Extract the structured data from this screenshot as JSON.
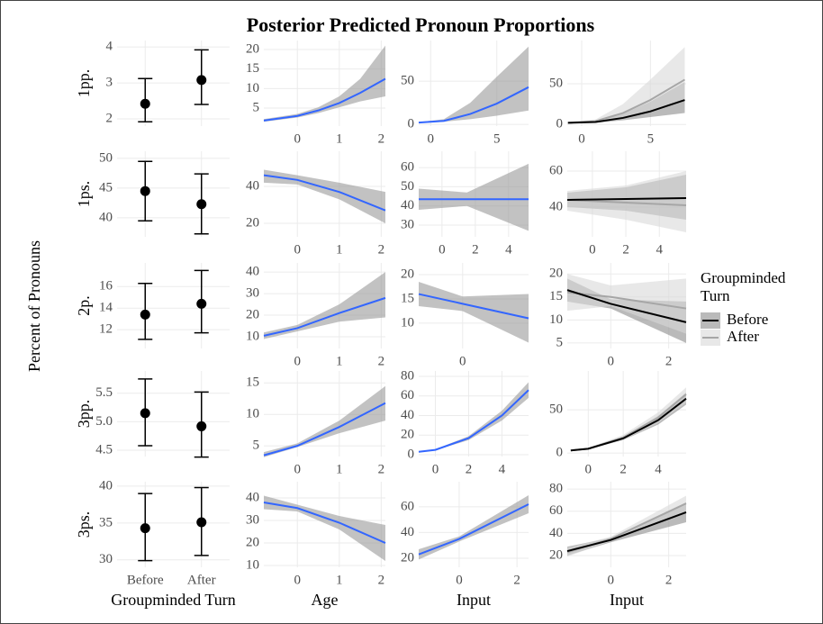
{
  "title": "Posterior Predicted Pronoun Proportions",
  "y_label": "Percent of Pronouns",
  "legend_title": [
    "Groupminded",
    "Turn"
  ],
  "chart_data": [
    {
      "type": "pointrange",
      "row_label": "1pp.",
      "categories": [
        null,
        null
      ],
      "values": [
        2.42,
        3.08
      ],
      "lower": [
        1.92,
        2.4
      ],
      "upper": [
        3.12,
        3.92
      ],
      "color": "#000000",
      "ylim": [
        1.8,
        4.18
      ],
      "yticks": [
        2,
        3,
        4
      ]
    },
    {
      "type": "line",
      "x": [
        -0.8,
        0,
        0.5,
        1,
        1.5,
        2.1
      ],
      "values": [
        1.8,
        3,
        4.4,
        6.3,
        8.9,
        12.5
      ],
      "lower": [
        1.5,
        2.6,
        3.7,
        5.2,
        6.7,
        8
      ],
      "upper": [
        2.2,
        3.5,
        5.2,
        8,
        12.5,
        21
      ],
      "color": "#3366ff",
      "ribbon_color": "#999999",
      "xlim": [
        -0.8,
        2.1
      ],
      "xticks": [
        0,
        1,
        2
      ],
      "ylim": [
        0.4,
        22.3
      ],
      "yticks": [
        5,
        10,
        15,
        20
      ]
    },
    {
      "type": "line",
      "x": [
        -0.9,
        1,
        3,
        5,
        7.4
      ],
      "values": [
        2,
        4,
        12,
        24,
        43
      ],
      "lower": [
        1.5,
        3,
        6,
        10,
        16
      ],
      "upper": [
        2.5,
        6,
        25,
        55,
        90
      ],
      "color": "#3366ff",
      "ribbon_color": "#999999",
      "xlim": [
        -0.9,
        7.4
      ],
      "xticks": [
        0,
        5
      ],
      "ylim": [
        -2,
        97
      ],
      "yticks": [
        0,
        50
      ]
    },
    {
      "type": "line",
      "x": [
        -1,
        1,
        3,
        5,
        7.5
      ],
      "series": [
        {
          "name": "Before",
          "color": "#000000",
          "ribbon_color": "#8c8c8c",
          "values": [
            2,
            3,
            8,
            16,
            30
          ],
          "lower": [
            1.5,
            2,
            5,
            9,
            14
          ],
          "upper": [
            2.5,
            4,
            13,
            28,
            52
          ]
        },
        {
          "name": "After",
          "color": "#a6a6a6",
          "ribbon_color": "#d9d9d9",
          "values": [
            2,
            4,
            14,
            30,
            55
          ],
          "lower": [
            1.5,
            3,
            8,
            17,
            30
          ],
          "upper": [
            3,
            6,
            25,
            55,
            95
          ]
        }
      ],
      "xlim": [
        -1.05,
        7.6
      ],
      "xticks": [
        0,
        5
      ],
      "ylim": [
        -2,
        103
      ],
      "yticks": [
        0,
        50
      ]
    },
    {
      "type": "pointrange",
      "row_label": "1ps.",
      "categories": [
        null,
        null
      ],
      "values": [
        44.5,
        42.3
      ],
      "lower": [
        39.5,
        37.3
      ],
      "upper": [
        49.5,
        47.4
      ],
      "color": "#000000",
      "ylim": [
        36.8,
        51.2
      ],
      "yticks": [
        40,
        45,
        50
      ]
    },
    {
      "type": "line",
      "x": [
        -0.8,
        0,
        1,
        2.1
      ],
      "values": [
        46,
        43.5,
        37,
        27
      ],
      "lower": [
        42,
        41,
        33,
        20
      ],
      "upper": [
        49,
        46,
        42,
        37
      ],
      "color": "#3366ff",
      "ribbon_color": "#999999",
      "xlim": [
        -0.8,
        2.1
      ],
      "xticks": [
        0,
        1,
        2
      ],
      "ylim": [
        12.7,
        59
      ],
      "yticks": [
        20,
        40
      ]
    },
    {
      "type": "line",
      "x": [
        -1.4,
        1.5,
        5.2
      ],
      "values": [
        43.5,
        43.5,
        43.5
      ],
      "lower": [
        38,
        40,
        27
      ],
      "upper": [
        49,
        47,
        62
      ],
      "color": "#3366ff",
      "ribbon_color": "#999999",
      "xlim": [
        -1.4,
        5.2
      ],
      "xticks": [
        0,
        2,
        4
      ],
      "ylim": [
        23.9,
        68.5
      ],
      "yticks": [
        30,
        40,
        50,
        60
      ]
    },
    {
      "type": "line",
      "x": [
        -1.5,
        2,
        5.6
      ],
      "series": [
        {
          "color": "#000000",
          "ribbon_color": "#8c8c8c",
          "values": [
            44,
            44.5,
            45
          ],
          "lower": [
            40,
            38,
            33
          ],
          "upper": [
            48,
            51,
            58
          ]
        },
        {
          "color": "#a6a6a6",
          "ribbon_color": "#d9d9d9",
          "values": [
            44,
            42.5,
            41
          ],
          "lower": [
            38,
            33,
            26
          ],
          "upper": [
            49,
            52,
            60
          ]
        }
      ],
      "xlim": [
        -1.5,
        5.6
      ],
      "xticks": [
        0,
        2,
        4
      ],
      "ylim": [
        23.5,
        71
      ],
      "yticks": [
        40,
        60
      ]
    },
    {
      "type": "pointrange",
      "row_label": "2p.",
      "categories": [
        null,
        null
      ],
      "values": [
        13.4,
        14.4
      ],
      "lower": [
        11.1,
        11.7
      ],
      "upper": [
        16.3,
        17.5
      ],
      "color": "#000000",
      "ylim": [
        10.25,
        18.2
      ],
      "yticks": [
        12,
        14,
        16
      ]
    },
    {
      "type": "line",
      "x": [
        -0.8,
        0,
        1,
        2.1
      ],
      "values": [
        10.5,
        14,
        21,
        28
      ],
      "lower": [
        9,
        12.5,
        17,
        19
      ],
      "upper": [
        12,
        15.5,
        25,
        40
      ],
      "color": "#3366ff",
      "ribbon_color": "#999999",
      "xlim": [
        -0.8,
        2.1
      ],
      "xticks": [
        0,
        1,
        2
      ],
      "ylim": [
        4.6,
        44.2
      ],
      "yticks": [
        10,
        20,
        30,
        40
      ]
    },
    {
      "type": "line",
      "x": [
        -1.4,
        0,
        2.1
      ],
      "values": [
        16,
        14,
        11
      ],
      "lower": [
        13.5,
        12.5,
        6
      ],
      "upper": [
        18.5,
        15.5,
        16
      ],
      "color": "#3366ff",
      "ribbon_color": "#999999",
      "xlim": [
        -1.4,
        2.1
      ],
      "xticks": [
        0
      ],
      "ylim": [
        4.8,
        22.4
      ],
      "yticks": [
        10,
        15,
        20
      ]
    },
    {
      "type": "line",
      "x": [
        -1.5,
        0,
        2.6
      ],
      "series": [
        {
          "color": "#000000",
          "ribbon_color": "#8c8c8c",
          "values": [
            16.5,
            13.5,
            9.5
          ],
          "lower": [
            14,
            12.5,
            5
          ],
          "upper": [
            19,
            14.5,
            14
          ]
        },
        {
          "color": "#a6a6a6",
          "ribbon_color": "#d9d9d9",
          "values": [
            16,
            15,
            12.5
          ],
          "lower": [
            12,
            13,
            7
          ],
          "upper": [
            20,
            17.5,
            19
          ]
        }
      ],
      "xlim": [
        -1.5,
        2.6
      ],
      "xticks": [
        0,
        2
      ],
      "ylim": [
        3.8,
        22.4
      ],
      "yticks": [
        5,
        10,
        15,
        20
      ]
    },
    {
      "type": "pointrange",
      "row_label": "3pp.",
      "categories": [
        null,
        null
      ],
      "values": [
        5.15,
        4.92
      ],
      "lower": [
        4.58,
        4.38
      ],
      "upper": [
        5.75,
        5.52
      ],
      "color": "#000000",
      "ylim": [
        4.39,
        5.89
      ],
      "yticks": [
        4.5,
        {
          "value": 5,
          "label": "5.0"
        },
        5.5
      ]
    },
    {
      "type": "line",
      "x": [
        -0.8,
        0,
        1,
        2.1
      ],
      "values": [
        3.5,
        5,
        8,
        11.8
      ],
      "lower": [
        3.2,
        4.8,
        7,
        9
      ],
      "upper": [
        4,
        5.4,
        9,
        14.5
      ],
      "color": "#3366ff",
      "ribbon_color": "#999999",
      "xlim": [
        -0.8,
        2.1
      ],
      "xticks": [
        0,
        1,
        2
      ],
      "ylim": [
        3.3,
        16.9
      ],
      "yticks": [
        5,
        10,
        15
      ]
    },
    {
      "type": "line",
      "x": [
        -1,
        0,
        2,
        4,
        5.6
      ],
      "values": [
        3,
        5,
        17,
        40,
        66
      ],
      "lower": [
        2.5,
        4.5,
        15,
        35,
        58
      ],
      "upper": [
        3.5,
        5.5,
        19,
        45,
        74
      ],
      "color": "#3366ff",
      "ribbon_color": "#999999",
      "xlim": [
        -1,
        5.6
      ],
      "xticks": [
        0,
        2,
        4
      ],
      "ylim": [
        -1.8,
        85.5
      ],
      "yticks": [
        0,
        20,
        40,
        60,
        80
      ]
    },
    {
      "type": "line",
      "x": [
        -1,
        0,
        2,
        4,
        5.6
      ],
      "series": [
        {
          "color": "#000000",
          "ribbon_color": "#8c8c8c",
          "values": [
            3,
            5,
            17,
            38,
            63
          ],
          "lower": [
            2.5,
            4.5,
            15,
            33,
            56
          ],
          "upper": [
            3.5,
            5.5,
            19,
            43,
            70
          ]
        },
        {
          "color": "#a6a6a6",
          "ribbon_color": "#d9d9d9",
          "values": [
            3,
            5,
            18,
            41,
            68
          ],
          "lower": [
            2.5,
            4.5,
            15,
            35,
            58
          ],
          "upper": [
            3.5,
            6,
            21,
            47,
            76
          ]
        }
      ],
      "xlim": [
        -1.2,
        5.6
      ],
      "xticks": [
        0,
        2,
        4
      ],
      "ylim": [
        -4,
        95
      ],
      "yticks": [
        0,
        50
      ]
    },
    {
      "type": "pointrange",
      "row_label": "3ps.",
      "x_label": "Groupminded Turn",
      "categories": [
        "Before",
        "After"
      ],
      "values": [
        34.3,
        35.1
      ],
      "lower": [
        29.9,
        30.6
      ],
      "upper": [
        39,
        39.8
      ],
      "color": "#000000",
      "ylim": [
        29,
        40.6
      ],
      "yticks": [
        30,
        35,
        40
      ]
    },
    {
      "type": "line",
      "x_label": "Age",
      "x": [
        -0.8,
        0,
        1,
        2.1
      ],
      "values": [
        38,
        35.5,
        29,
        20
      ],
      "lower": [
        35,
        34,
        26,
        12
      ],
      "upper": [
        41,
        37,
        32,
        28
      ],
      "color": "#3366ff",
      "ribbon_color": "#999999",
      "xlim": [
        -0.8,
        2.1
      ],
      "xticks": [
        0,
        1,
        2
      ],
      "ylim": [
        9.2,
        47.2
      ],
      "yticks": [
        10,
        20,
        30,
        40
      ]
    },
    {
      "type": "line",
      "x_label": "Input",
      "x": [
        -1.4,
        0,
        2.4
      ],
      "values": [
        23,
        35,
        62
      ],
      "lower": [
        19,
        33,
        55
      ],
      "upper": [
        27,
        37,
        69
      ],
      "color": "#3366ff",
      "ribbon_color": "#999999",
      "xlim": [
        -1.4,
        2.4
      ],
      "xticks": [
        0,
        2
      ],
      "ylim": [
        13,
        79.5
      ],
      "yticks": [
        20,
        40,
        60
      ]
    },
    {
      "type": "line",
      "x_label": "Input",
      "x": [
        -1.5,
        0,
        2.6
      ],
      "series": [
        {
          "color": "#000000",
          "ribbon_color": "#8c8c8c",
          "values": [
            24,
            34,
            59
          ],
          "lower": [
            20,
            32,
            50
          ],
          "upper": [
            28,
            36,
            68
          ]
        },
        {
          "color": "#a6a6a6",
          "ribbon_color": "#d9d9d9",
          "values": [
            23,
            35,
            67
          ],
          "lower": [
            19,
            33,
            60
          ],
          "upper": [
            27,
            37,
            74
          ]
        }
      ],
      "xlim": [
        -1.5,
        2.6
      ],
      "xticks": [
        0,
        2
      ],
      "ylim": [
        9.4,
        86.6
      ],
      "yticks": [
        20,
        40,
        60,
        80
      ]
    }
  ]
}
